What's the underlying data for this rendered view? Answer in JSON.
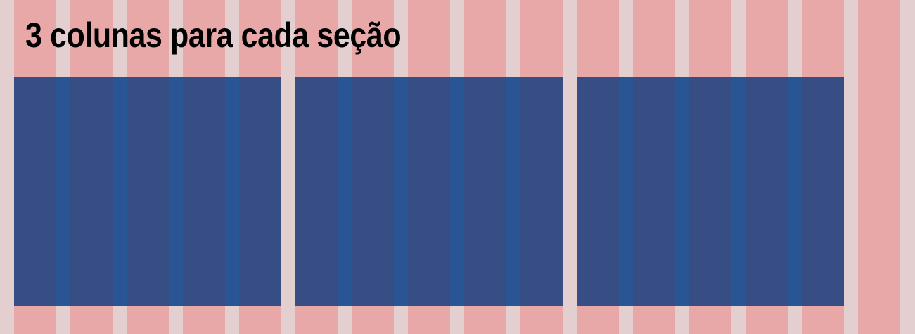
{
  "title": "3 colunas para cada seção",
  "grid": {
    "total_columns": 16,
    "columns_per_section": 3,
    "sections": 3
  },
  "colors": {
    "background_gutter": "#e3cfcf",
    "grid_column": "#e8a8a8",
    "section_block": "#364e84",
    "section_column": "#2a5594",
    "title_text": "#000000"
  }
}
